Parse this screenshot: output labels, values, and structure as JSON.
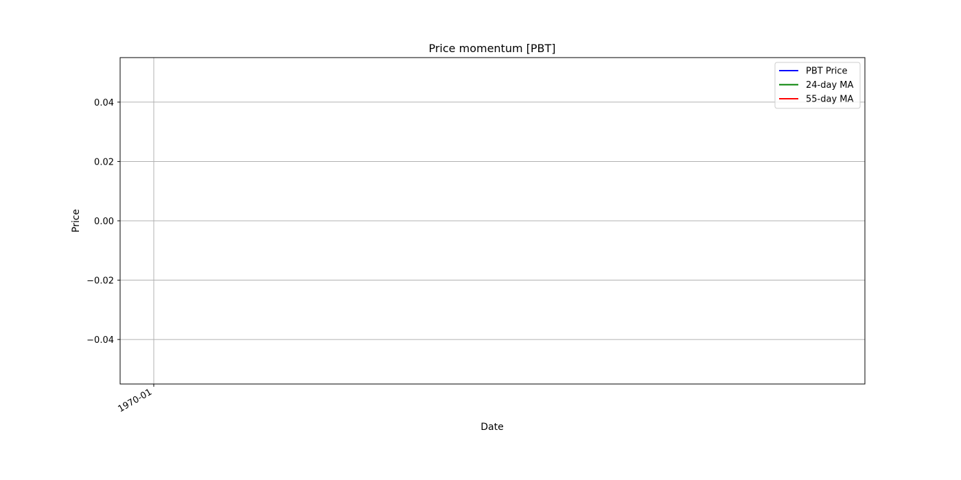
{
  "chart_data": {
    "type": "line",
    "title": "Price momentum [PBT]",
    "xlabel": "Date",
    "ylabel": "Price",
    "x_ticks": [
      "1970-01"
    ],
    "y_ticks": [
      "0.04",
      "0.02",
      "0.00",
      "−0.02",
      "−0.04"
    ],
    "y_tick_values": [
      0.04,
      0.02,
      0.0,
      -0.02,
      -0.04
    ],
    "ylim": [
      -0.055,
      0.055
    ],
    "grid": true,
    "legend_position": "upper right",
    "series": [
      {
        "name": "PBT Price",
        "color": "#0000ff",
        "values": []
      },
      {
        "name": "24-day MA",
        "color": "#008000",
        "values": []
      },
      {
        "name": "55-day MA",
        "color": "#ff0000",
        "values": []
      }
    ]
  }
}
